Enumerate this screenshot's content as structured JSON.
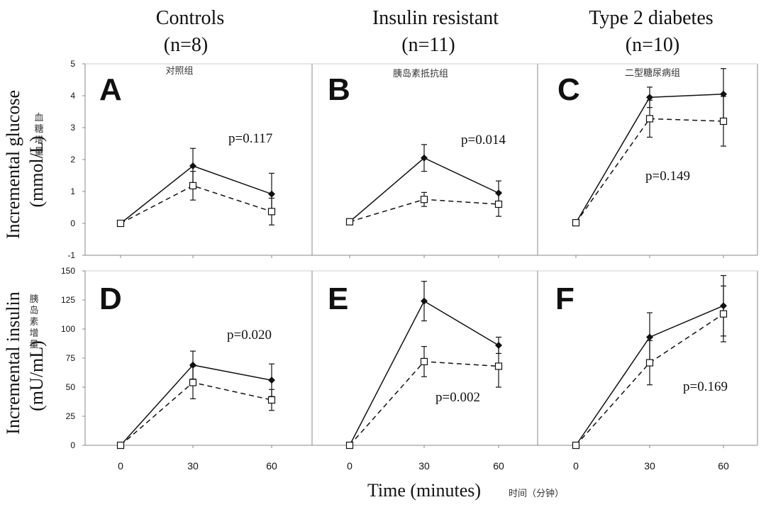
{
  "figure": {
    "column_titles": [
      {
        "name": "Controls",
        "n": "(n=8)"
      },
      {
        "name": "Insulin resistant",
        "n": "(n=11)"
      },
      {
        "name": "Type 2 diabetes",
        "n": "(n=10)"
      }
    ],
    "column_subtitles_cn": [
      "对照组",
      "胰岛素抵抗组",
      "二型糖尿病组"
    ],
    "row_ylabels": [
      {
        "line1": "Incremental glucose",
        "line2": "(mmol/L)",
        "cn": [
          "血",
          "糖",
          "增",
          "量"
        ]
      },
      {
        "line1": "Incremental insulin",
        "line2": "(mU/mL)",
        "cn": [
          "胰",
          "岛",
          "素",
          "增",
          "量"
        ]
      }
    ],
    "xlabel": "Time (minutes)",
    "xlabel_cn": "时间（分钟）",
    "colors": {
      "axis": "#888888",
      "line": "#111111",
      "marker_open_fill": "#ffffff"
    }
  },
  "chart_data": [
    {
      "type": "line",
      "panel": "A",
      "x": [
        0,
        30,
        60
      ],
      "ylim": [
        -1,
        5
      ],
      "yticks": [
        -1,
        0,
        1,
        2,
        3,
        4,
        5
      ],
      "xticks": [
        0,
        30,
        60
      ],
      "pvalue": "p=0.117",
      "series": [
        {
          "style": "solid",
          "marker": "filled-diamond",
          "values": [
            0,
            1.8,
            0.92
          ],
          "err": [
            0,
            0.55,
            0.65
          ]
        },
        {
          "style": "dashed",
          "marker": "open-square",
          "values": [
            0,
            1.18,
            0.37
          ],
          "err": [
            0,
            0.45,
            0.42
          ]
        }
      ]
    },
    {
      "type": "line",
      "panel": "B",
      "x": [
        0,
        30,
        60
      ],
      "ylim": [
        -1,
        5
      ],
      "xticks": [
        0,
        30,
        60
      ],
      "pvalue": "p=0.014",
      "series": [
        {
          "style": "solid",
          "marker": "filled-diamond",
          "values": [
            0.05,
            2.05,
            0.95
          ],
          "err": [
            0,
            0.42,
            0.38
          ]
        },
        {
          "style": "dashed",
          "marker": "open-square",
          "values": [
            0.05,
            0.75,
            0.6
          ],
          "err": [
            0,
            0.22,
            0.38
          ]
        }
      ]
    },
    {
      "type": "line",
      "panel": "C",
      "x": [
        0,
        30,
        60
      ],
      "ylim": [
        -1,
        5
      ],
      "xticks": [
        0,
        30,
        60
      ],
      "pvalue": "p=0.149",
      "series": [
        {
          "style": "solid",
          "marker": "filled-diamond",
          "values": [
            0.02,
            3.95,
            4.05
          ],
          "err": [
            0,
            0.32,
            0.8
          ]
        },
        {
          "style": "dashed",
          "marker": "open-square",
          "values": [
            0.02,
            3.28,
            3.2
          ],
          "err": [
            0,
            0.58,
            0.78
          ]
        }
      ]
    },
    {
      "type": "line",
      "panel": "D",
      "x": [
        0,
        30,
        60
      ],
      "ylim": [
        0,
        150
      ],
      "yticks": [
        0,
        25,
        50,
        75,
        100,
        125,
        150
      ],
      "xticks": [
        0,
        30,
        60
      ],
      "pvalue": "p=0.020",
      "series": [
        {
          "style": "solid",
          "marker": "filled-diamond",
          "values": [
            0,
            69,
            56
          ],
          "err": [
            0,
            12,
            14
          ]
        },
        {
          "style": "dashed",
          "marker": "open-square",
          "values": [
            0,
            54,
            39
          ],
          "err": [
            0,
            14,
            9
          ]
        }
      ]
    },
    {
      "type": "line",
      "panel": "E",
      "x": [
        0,
        30,
        60
      ],
      "ylim": [
        0,
        150
      ],
      "xticks": [
        0,
        30,
        60
      ],
      "pvalue": "p=0.002",
      "series": [
        {
          "style": "solid",
          "marker": "filled-diamond",
          "values": [
            0,
            124,
            86
          ],
          "err": [
            0,
            17,
            7
          ]
        },
        {
          "style": "dashed",
          "marker": "open-square",
          "values": [
            0,
            72,
            68
          ],
          "err": [
            0,
            13,
            18
          ]
        }
      ]
    },
    {
      "type": "line",
      "panel": "F",
      "x": [
        0,
        30,
        60
      ],
      "ylim": [
        0,
        150
      ],
      "xticks": [
        0,
        30,
        60
      ],
      "pvalue": "p=0.169",
      "series": [
        {
          "style": "solid",
          "marker": "filled-diamond",
          "values": [
            0,
            93,
            120
          ],
          "err": [
            0,
            21,
            26
          ]
        },
        {
          "style": "dashed",
          "marker": "open-square",
          "values": [
            0,
            71,
            113
          ],
          "err": [
            0,
            19,
            24
          ]
        }
      ]
    }
  ]
}
